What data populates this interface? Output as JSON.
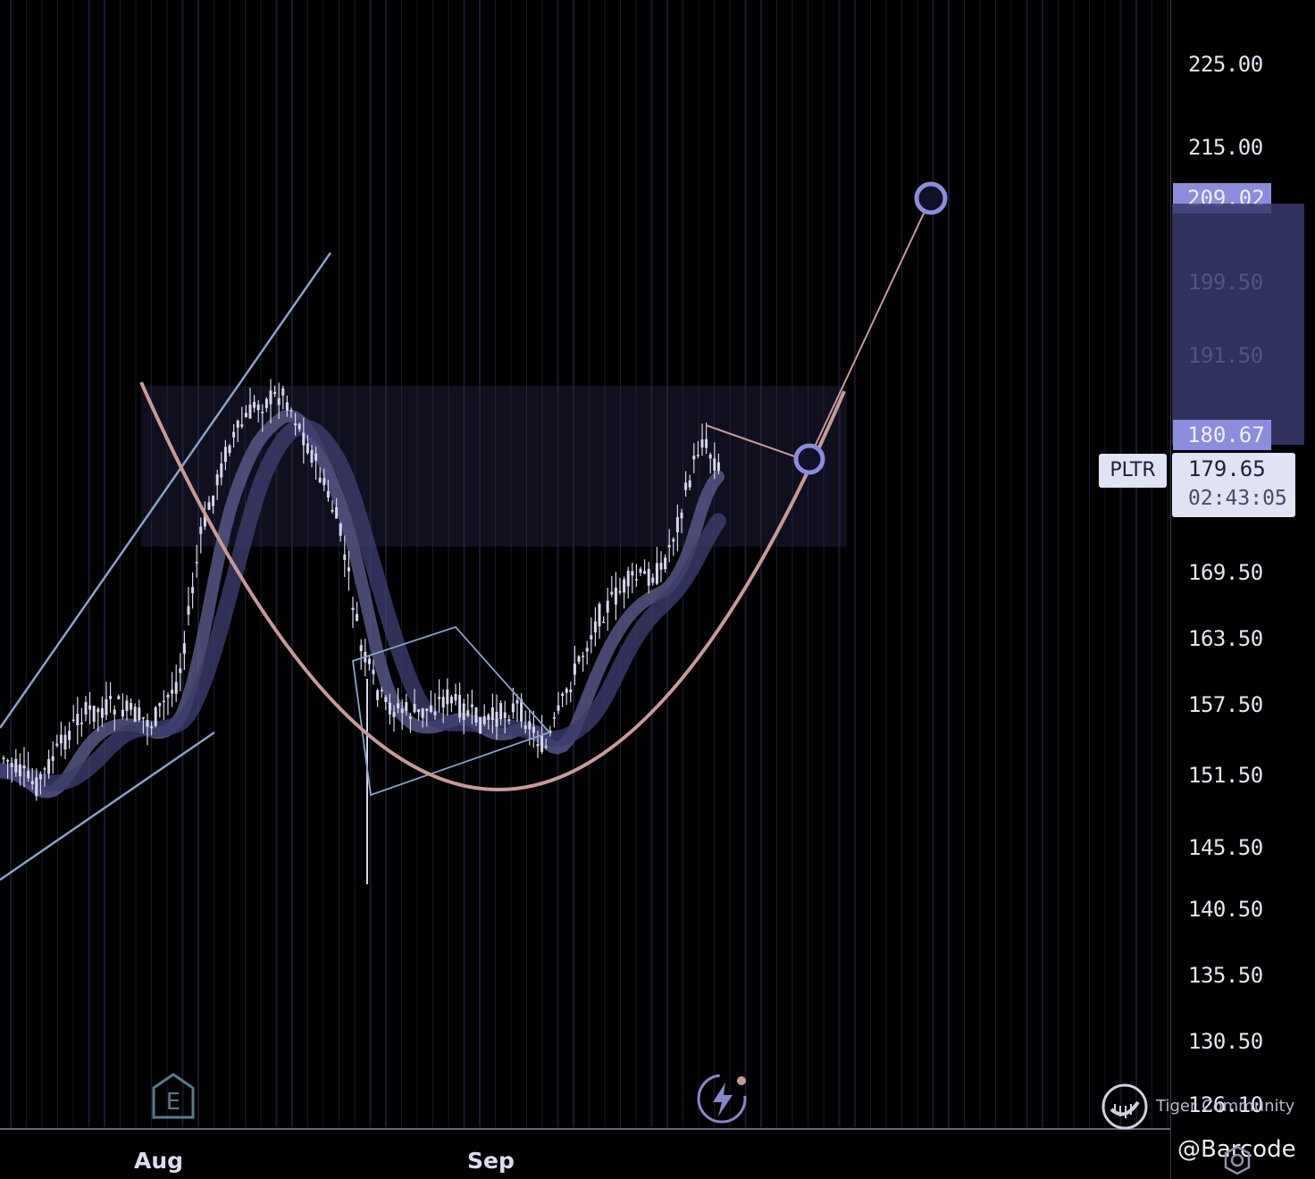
{
  "chart_data": {
    "type": "candlestick",
    "symbol": "PLTR",
    "x_labels": [
      "Aug",
      "Sep"
    ],
    "y_ticks": [
      "225.00",
      "215.00",
      "199.50",
      "191.50",
      "169.50",
      "163.50",
      "157.50",
      "151.50",
      "145.50",
      "140.50",
      "135.50",
      "130.50",
      "126.10"
    ],
    "price_tags": [
      {
        "value": "209.02",
        "style": "target"
      },
      {
        "value": "180.67",
        "style": "entry"
      }
    ],
    "last_price": "179.65",
    "countdown": "02:43:05",
    "colors": {
      "background": "#000000",
      "candle": "#d6d6ee",
      "trendline": "#8aa2c8",
      "cup_curve": "#c89a9a",
      "target_marker": "#8c8cdc",
      "price_tag": "#8c8cdc",
      "moving_average": "#6c6c9c"
    },
    "annotations": [
      "rising channel",
      "cup curve",
      "descending flag",
      "rim zone",
      "handle pullback",
      "projection to target"
    ]
  },
  "icons": {
    "earnings": "E",
    "flash": "flash-icon",
    "settings": "gear-icon"
  },
  "watermark": {
    "brand": "Tiger Community",
    "handle": "@Barcode"
  }
}
